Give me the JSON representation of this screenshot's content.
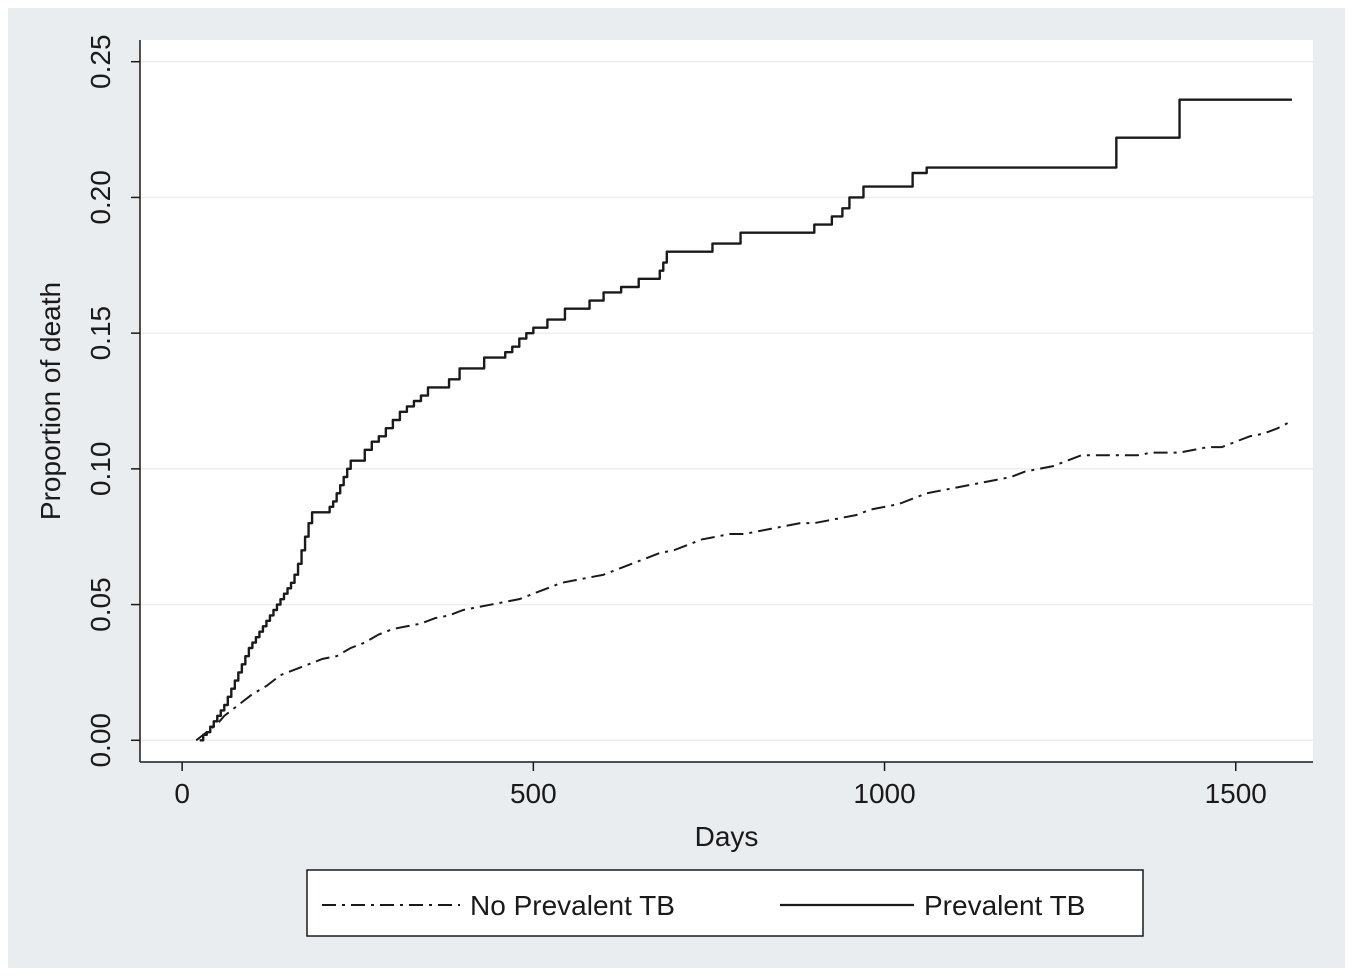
{
  "chart_data": {
    "type": "line",
    "title": "",
    "xlabel": "Days",
    "ylabel": "Proportion of death",
    "xlim": [
      -60,
      1610
    ],
    "ylim": [
      -0.008,
      0.258
    ],
    "xticks": [
      {
        "value": 0,
        "label": "0"
      },
      {
        "value": 500,
        "label": "500"
      },
      {
        "value": 1000,
        "label": "1000"
      },
      {
        "value": 1500,
        "label": "1500"
      }
    ],
    "yticks": [
      {
        "value": 0.0,
        "label": "0.00"
      },
      {
        "value": 0.05,
        "label": "0.05"
      },
      {
        "value": 0.1,
        "label": "0.10"
      },
      {
        "value": 0.15,
        "label": "0.15"
      },
      {
        "value": 0.2,
        "label": "0.20"
      },
      {
        "value": 0.25,
        "label": "0.25"
      }
    ],
    "grid": "horizontal",
    "legend_position": "bottom",
    "colors": {
      "frame": "#e9edf0",
      "plot": "#ffffff",
      "line": "#1a1a1a",
      "grid": "#eeeeee"
    },
    "series": [
      {
        "name": "No Prevalent TB",
        "style": "dash-dot",
        "x": [
          20,
          30,
          40,
          50,
          60,
          80,
          100,
          120,
          140,
          160,
          180,
          200,
          220,
          240,
          260,
          280,
          300,
          320,
          340,
          360,
          380,
          400,
          420,
          440,
          460,
          480,
          500,
          520,
          540,
          560,
          580,
          600,
          620,
          640,
          660,
          680,
          700,
          720,
          740,
          760,
          780,
          800,
          820,
          840,
          860,
          880,
          900,
          920,
          940,
          960,
          980,
          1000,
          1020,
          1040,
          1060,
          1080,
          1100,
          1120,
          1140,
          1160,
          1180,
          1200,
          1220,
          1240,
          1260,
          1280,
          1300,
          1320,
          1340,
          1360,
          1380,
          1400,
          1420,
          1440,
          1460,
          1480,
          1500,
          1520,
          1540,
          1560,
          1575
        ],
        "y": [
          0.0,
          0.002,
          0.004,
          0.006,
          0.009,
          0.013,
          0.017,
          0.02,
          0.024,
          0.026,
          0.028,
          0.03,
          0.031,
          0.034,
          0.036,
          0.039,
          0.041,
          0.042,
          0.043,
          0.045,
          0.046,
          0.048,
          0.049,
          0.05,
          0.051,
          0.052,
          0.054,
          0.056,
          0.058,
          0.059,
          0.06,
          0.061,
          0.063,
          0.065,
          0.067,
          0.069,
          0.07,
          0.072,
          0.074,
          0.075,
          0.076,
          0.076,
          0.077,
          0.078,
          0.079,
          0.08,
          0.08,
          0.081,
          0.082,
          0.083,
          0.085,
          0.086,
          0.087,
          0.089,
          0.091,
          0.092,
          0.093,
          0.094,
          0.095,
          0.096,
          0.097,
          0.099,
          0.1,
          0.101,
          0.103,
          0.105,
          0.105,
          0.105,
          0.105,
          0.105,
          0.106,
          0.106,
          0.106,
          0.107,
          0.108,
          0.108,
          0.11,
          0.112,
          0.113,
          0.115,
          0.117
        ]
      },
      {
        "name": "Prevalent TB",
        "style": "solid-step",
        "x": [
          25,
          30,
          35,
          40,
          45,
          50,
          55,
          60,
          65,
          70,
          75,
          80,
          85,
          90,
          95,
          100,
          105,
          110,
          115,
          120,
          125,
          130,
          135,
          140,
          145,
          150,
          155,
          160,
          165,
          170,
          175,
          180,
          185,
          210,
          215,
          220,
          225,
          230,
          235,
          240,
          250,
          260,
          270,
          280,
          290,
          300,
          310,
          320,
          330,
          340,
          350,
          380,
          395,
          430,
          460,
          470,
          480,
          490,
          500,
          520,
          545,
          580,
          600,
          625,
          650,
          680,
          685,
          690,
          720,
          755,
          795,
          900,
          925,
          940,
          950,
          970,
          1040,
          1060,
          1300,
          1330,
          1390,
          1420,
          1580
        ],
        "y": [
          0.0,
          0.002,
          0.003,
          0.005,
          0.007,
          0.009,
          0.011,
          0.013,
          0.016,
          0.019,
          0.022,
          0.025,
          0.028,
          0.031,
          0.034,
          0.036,
          0.038,
          0.04,
          0.042,
          0.044,
          0.046,
          0.048,
          0.05,
          0.052,
          0.054,
          0.056,
          0.058,
          0.061,
          0.065,
          0.07,
          0.075,
          0.08,
          0.084,
          0.086,
          0.088,
          0.091,
          0.094,
          0.097,
          0.1,
          0.103,
          0.103,
          0.107,
          0.11,
          0.112,
          0.115,
          0.118,
          0.121,
          0.123,
          0.125,
          0.127,
          0.13,
          0.133,
          0.137,
          0.141,
          0.143,
          0.145,
          0.148,
          0.15,
          0.152,
          0.155,
          0.159,
          0.162,
          0.165,
          0.167,
          0.17,
          0.173,
          0.176,
          0.18,
          0.18,
          0.183,
          0.187,
          0.19,
          0.193,
          0.196,
          0.2,
          0.204,
          0.209,
          0.211,
          0.211,
          0.222,
          0.222,
          0.236,
          0.236
        ]
      }
    ]
  }
}
